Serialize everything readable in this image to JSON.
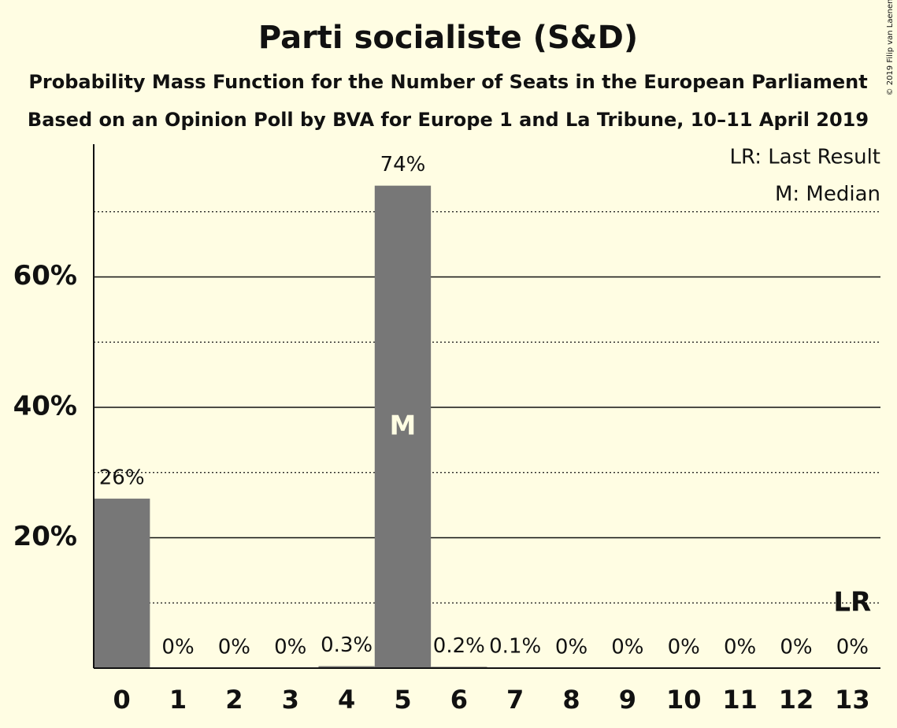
{
  "chart_data": {
    "type": "bar",
    "title": "Parti socialiste (S&D)",
    "subtitle": "Probability Mass Function for the Number of Seats in the European Parliament",
    "subtitle2": "Based on an Opinion Poll by BVA for Europe 1 and La Tribune, 10–11 April 2019",
    "copyright": "© 2019 Filip van Laenen",
    "categories": [
      "0",
      "1",
      "2",
      "3",
      "4",
      "5",
      "6",
      "7",
      "8",
      "9",
      "10",
      "11",
      "12",
      "13"
    ],
    "values": [
      26,
      0,
      0,
      0,
      0.3,
      74,
      0.2,
      0.1,
      0,
      0,
      0,
      0,
      0,
      0
    ],
    "value_labels": [
      "26%",
      "0%",
      "0%",
      "0%",
      "0.3%",
      "74%",
      "0.2%",
      "0.1%",
      "0%",
      "0%",
      "0%",
      "0%",
      "0%",
      "0%"
    ],
    "color": "#777777",
    "ylim": [
      0,
      80
    ],
    "yticks": [
      {
        "value": 20,
        "label": "20%"
      },
      {
        "value": 40,
        "label": "40%"
      },
      {
        "value": 60,
        "label": "60%"
      }
    ],
    "minor_grid": [
      10,
      30,
      50,
      70
    ],
    "grid": true,
    "legend": [
      "LR: Last Result",
      "M: Median"
    ],
    "annotations": [
      {
        "text": "M",
        "category": 5
      },
      {
        "text": "LR",
        "category": 13
      }
    ]
  }
}
